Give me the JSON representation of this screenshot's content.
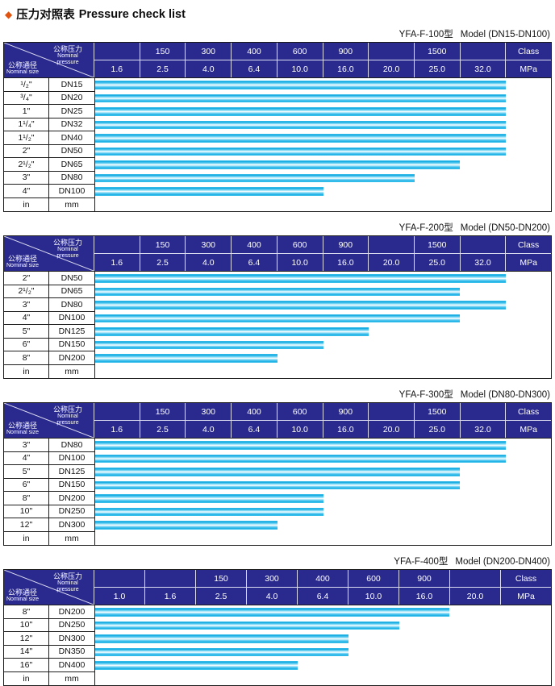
{
  "title": {
    "diamond": "◆",
    "zh": "压力对照表",
    "en": "Pressure check list"
  },
  "corner": {
    "pressure_zh": "公称压力",
    "pressure_en": "Nominal pressure",
    "size_zh": "公称通径",
    "size_en": "Nominal size"
  },
  "colors": {
    "header_bg": "#2a2a8e",
    "bar_cyan": "#1cb0e6",
    "diamond_orange": "#e05410",
    "grid_black": "#1c1c1c"
  },
  "tables": [
    {
      "id": "yfa-f-100",
      "title_model": "YFA-F-100型",
      "title_spec": "Model (DN15-DN100)",
      "class_row": [
        "",
        "150",
        "300",
        "400",
        "600",
        "900",
        "",
        "1500",
        "",
        "Class"
      ],
      "mpa_row": [
        "1.6",
        "2.5",
        "4.0",
        "6.4",
        "10.0",
        "16.0",
        "20.0",
        "25.0",
        "32.0",
        "MPa"
      ],
      "unit_row": {
        "size": "in",
        "dn": "mm"
      },
      "rows": [
        {
          "size": "¹/₂\"",
          "dn": "DN15",
          "bar_cols": 9,
          "max_mpa": "32.0"
        },
        {
          "size": "³/₄\"",
          "dn": "DN20",
          "bar_cols": 9,
          "max_mpa": "32.0"
        },
        {
          "size": "1\"",
          "dn": "DN25",
          "bar_cols": 9,
          "max_mpa": "32.0"
        },
        {
          "size": "1¹/₄\"",
          "dn": "DN32",
          "bar_cols": 9,
          "max_mpa": "32.0"
        },
        {
          "size": "1¹/₂\"",
          "dn": "DN40",
          "bar_cols": 9,
          "max_mpa": "32.0"
        },
        {
          "size": "2\"",
          "dn": "DN50",
          "bar_cols": 9,
          "max_mpa": "32.0"
        },
        {
          "size": "2¹/₂\"",
          "dn": "DN65",
          "bar_cols": 8,
          "max_mpa": "25.0"
        },
        {
          "size": "3\"",
          "dn": "DN80",
          "bar_cols": 7,
          "max_mpa": "20.0"
        },
        {
          "size": "4\"",
          "dn": "DN100",
          "bar_cols": 5,
          "max_mpa": "10.0"
        }
      ]
    },
    {
      "id": "yfa-f-200",
      "title_model": "YFA-F-200型",
      "title_spec": "Model (DN50-DN200)",
      "class_row": [
        "",
        "150",
        "300",
        "400",
        "600",
        "900",
        "",
        "1500",
        "",
        "Class"
      ],
      "mpa_row": [
        "1.6",
        "2.5",
        "4.0",
        "6.4",
        "10.0",
        "16.0",
        "20.0",
        "25.0",
        "32.0",
        "MPa"
      ],
      "unit_row": {
        "size": "in",
        "dn": "mm"
      },
      "rows": [
        {
          "size": "2\"",
          "dn": "DN50",
          "bar_cols": 9,
          "max_mpa": "32.0"
        },
        {
          "size": "2¹/₂\"",
          "dn": "DN65",
          "bar_cols": 8,
          "max_mpa": "25.0"
        },
        {
          "size": "3\"",
          "dn": "DN80",
          "bar_cols": 9,
          "max_mpa": "32.0"
        },
        {
          "size": "4\"",
          "dn": "DN100",
          "bar_cols": 8,
          "max_mpa": "25.0"
        },
        {
          "size": "5\"",
          "dn": "DN125",
          "bar_cols": 6,
          "max_mpa": "16.0"
        },
        {
          "size": "6\"",
          "dn": "DN150",
          "bar_cols": 5,
          "max_mpa": "10.0"
        },
        {
          "size": "8\"",
          "dn": "DN200",
          "bar_cols": 4,
          "max_mpa": "6.4"
        }
      ]
    },
    {
      "id": "yfa-f-300",
      "title_model": "YFA-F-300型",
      "title_spec": "Model (DN80-DN300)",
      "class_row": [
        "",
        "150",
        "300",
        "400",
        "600",
        "900",
        "",
        "1500",
        "",
        "Class"
      ],
      "mpa_row": [
        "1.6",
        "2.5",
        "4.0",
        "6.4",
        "10.0",
        "16.0",
        "20.0",
        "25.0",
        "32.0",
        "MPa"
      ],
      "unit_row": {
        "size": "in",
        "dn": "mm"
      },
      "rows": [
        {
          "size": "3\"",
          "dn": "DN80",
          "bar_cols": 9,
          "max_mpa": "32.0"
        },
        {
          "size": "4\"",
          "dn": "DN100",
          "bar_cols": 9,
          "max_mpa": "32.0"
        },
        {
          "size": "5\"",
          "dn": "DN125",
          "bar_cols": 8,
          "max_mpa": "25.0"
        },
        {
          "size": "6\"",
          "dn": "DN150",
          "bar_cols": 8,
          "max_mpa": "25.0"
        },
        {
          "size": "8\"",
          "dn": "DN200",
          "bar_cols": 5,
          "max_mpa": "10.0"
        },
        {
          "size": "10\"",
          "dn": "DN250",
          "bar_cols": 5,
          "max_mpa": "10.0"
        },
        {
          "size": "12\"",
          "dn": "DN300",
          "bar_cols": 4,
          "max_mpa": "6.4"
        }
      ]
    },
    {
      "id": "yfa-f-400",
      "title_model": "YFA-F-400型",
      "title_spec": "Model (DN200-DN400)",
      "class_row": [
        "",
        "",
        "150",
        "300",
        "400",
        "600",
        "900",
        "",
        "Class"
      ],
      "mpa_row": [
        "1.0",
        "1.6",
        "2.5",
        "4.0",
        "6.4",
        "10.0",
        "16.0",
        "20.0",
        "MPa"
      ],
      "unit_row": {
        "size": "in",
        "dn": "mm"
      },
      "rows": [
        {
          "size": "8\"",
          "dn": "DN200",
          "bar_cols": 7,
          "max_mpa": "16.0"
        },
        {
          "size": "10\"",
          "dn": "DN250",
          "bar_cols": 6,
          "max_mpa": "10.0"
        },
        {
          "size": "12\"",
          "dn": "DN300",
          "bar_cols": 5,
          "max_mpa": "6.4"
        },
        {
          "size": "14\"",
          "dn": "DN350",
          "bar_cols": 5,
          "max_mpa": "6.4"
        },
        {
          "size": "16\"",
          "dn": "DN400",
          "bar_cols": 4,
          "max_mpa": "4.0"
        }
      ]
    }
  ]
}
